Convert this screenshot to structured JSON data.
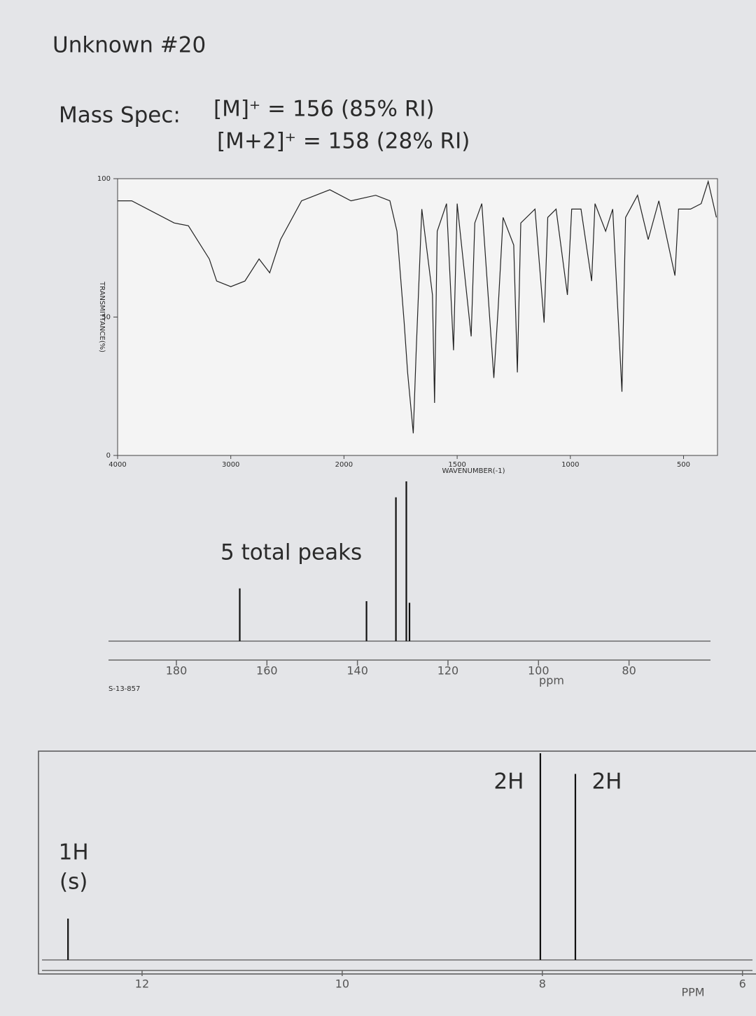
{
  "title": "Unknown #20",
  "mass_spec": {
    "label": "Mass Spec:",
    "lines": [
      "[M]⁺ = 156 (85% RI)",
      "[M+2]⁺ = 158 (28% RI)"
    ]
  },
  "chart_data": [
    {
      "type": "line",
      "ylabel": "TRANSMITTANCE(%)",
      "xlabel": "WAVENUMBER(-1)",
      "x": [
        4000,
        3875,
        3500,
        3375,
        3190,
        3125,
        3000,
        2875,
        2750,
        2656,
        2560,
        2375,
        2125,
        1969,
        1860,
        1797,
        1766,
        1734,
        1719,
        1694,
        1681,
        1656,
        1609,
        1600,
        1588,
        1547,
        1516,
        1500,
        1438,
        1422,
        1391,
        1338,
        1319,
        1297,
        1250,
        1234,
        1219,
        1156,
        1116,
        1100,
        1063,
        1013,
        994,
        953,
        906,
        891,
        844,
        813,
        772,
        756,
        703,
        656,
        609,
        538,
        522,
        469,
        422,
        391,
        355
      ],
      "values": [
        92,
        92,
        84,
        83,
        71,
        63,
        61,
        63,
        71,
        66,
        78,
        92,
        96,
        92,
        94,
        92,
        81,
        48,
        30,
        8,
        38,
        89,
        58,
        19,
        81,
        91,
        38,
        91,
        43,
        84,
        91,
        28,
        53,
        86,
        76,
        30,
        84,
        89,
        48,
        86,
        89,
        58,
        89,
        89,
        63,
        91,
        81,
        89,
        23,
        86,
        94,
        78,
        92,
        65,
        89,
        89,
        91,
        99,
        86
      ],
      "xlim": [
        4000,
        350
      ],
      "xticks": [
        4000,
        3000,
        2000,
        1500,
        1000,
        500
      ],
      "ylim": [
        0,
        100
      ],
      "yticks": [
        0,
        50,
        100
      ],
      "color": "#222222"
    },
    {
      "type": "stem",
      "annotation": "5 total peaks",
      "xlabel": "ppm",
      "code": "S-13-857",
      "x": [
        166,
        138,
        131.5,
        129.2,
        128.5
      ],
      "values": [
        33,
        25,
        90,
        100,
        24
      ],
      "xlim": [
        195,
        62
      ],
      "xticks": [
        180,
        160,
        140,
        120,
        100,
        80
      ],
      "color": "#111111"
    },
    {
      "type": "stem",
      "xlabel": "PPM",
      "x": [
        12.74,
        8.02,
        7.67
      ],
      "values": [
        20,
        100,
        90
      ],
      "peak_labels": [
        [
          "1H",
          "(s)"
        ],
        [
          "2H"
        ],
        [
          "2H"
        ]
      ],
      "xlim": [
        13.0,
        5.9
      ],
      "xticks": [
        12,
        10,
        8,
        6
      ],
      "color": "#111111"
    }
  ]
}
